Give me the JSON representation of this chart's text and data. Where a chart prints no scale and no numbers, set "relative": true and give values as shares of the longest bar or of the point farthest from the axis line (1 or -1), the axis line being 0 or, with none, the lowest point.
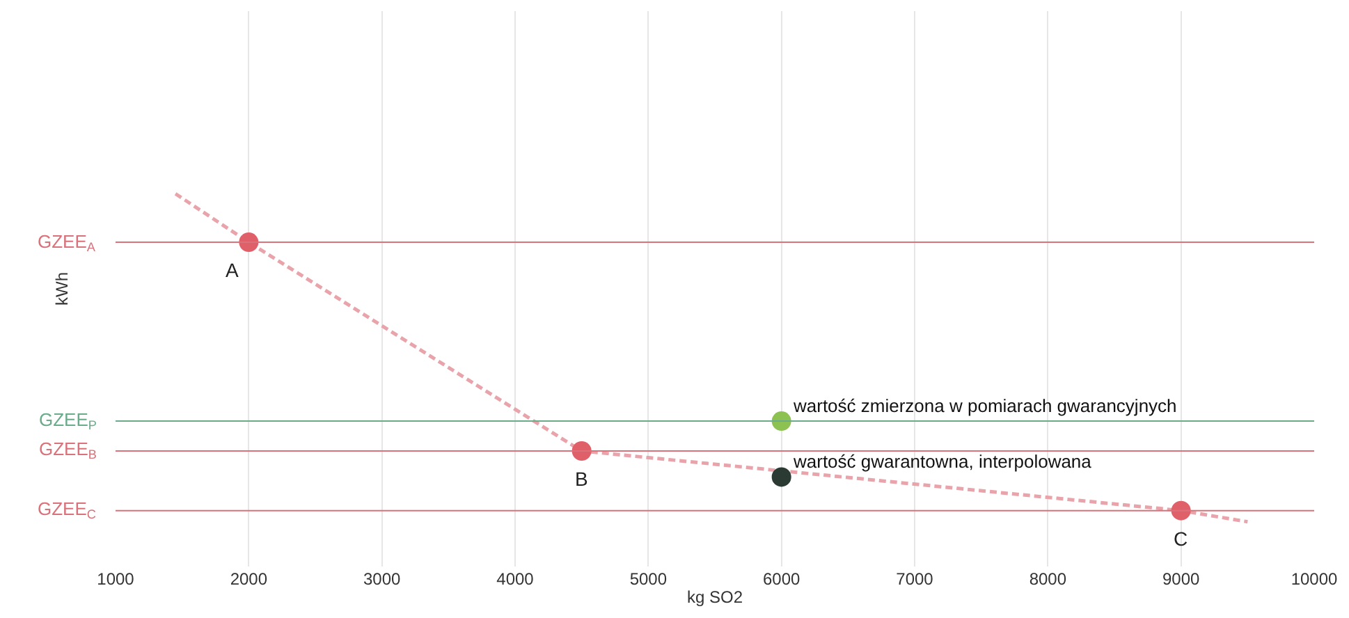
{
  "chart_data": {
    "type": "scatter",
    "relative": true,
    "xlabel": "kg SO2",
    "ylabel": "kWh",
    "xlim": [
      1000,
      10000
    ],
    "xticks": [
      1000,
      2000,
      3000,
      4000,
      5000,
      6000,
      7000,
      8000,
      9000,
      10000
    ],
    "grid": "x",
    "series": [
      {
        "type": "line",
        "line_style": "dashed",
        "marker": "none",
        "color": "#e9a3aa",
        "x": [
          1450,
          2000,
          4500,
          9000,
          9500
        ],
        "values": [
          1.0,
          0.87,
          0.31,
          0.15,
          0.12
        ]
      },
      {
        "marker": "circle",
        "color": "#e0606a",
        "x": [
          2000,
          4500,
          9000
        ],
        "values": [
          0.87,
          0.31,
          0.15
        ]
      },
      {
        "marker": "circle",
        "color": "#8dc152",
        "x": [
          6000
        ],
        "values": [
          0.39
        ]
      },
      {
        "marker": "circle",
        "color": "#2b3a33",
        "x": [
          6000
        ],
        "values": [
          0.24
        ]
      }
    ],
    "ref_lines": [
      {
        "axis": "y",
        "value": 0.87,
        "label": "GZEE$_{A}$",
        "color": "#d9727a"
      },
      {
        "axis": "y",
        "value": 0.39,
        "label": "GZEE$_{P}$",
        "color": "#6aab8a"
      },
      {
        "axis": "y",
        "value": 0.31,
        "label": "GZEE$_{B}$",
        "color": "#d9727a"
      },
      {
        "axis": "y",
        "value": 0.15,
        "label": "GZEE$_{C}$",
        "color": "#d9727a"
      }
    ],
    "annotations": [
      {
        "text": "A",
        "x": 2000,
        "y": 0.87
      },
      {
        "text": "B",
        "x": 4500,
        "y": 0.31
      },
      {
        "text": "C",
        "x": 9000,
        "y": 0.15
      },
      {
        "text": "wartość zmierzona w pomiarach gwarancyjnych",
        "x": 6000,
        "y": 0.39
      },
      {
        "text": "wartość gwarantowna, interpolowana",
        "x": 6000,
        "y": 0.24
      }
    ]
  }
}
